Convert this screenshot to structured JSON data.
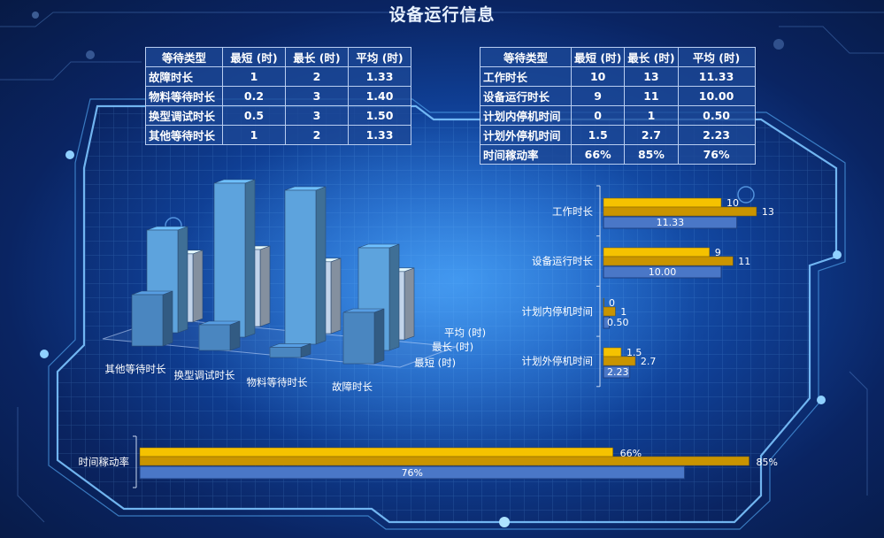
{
  "title": "设备运行信息",
  "table_left": {
    "headers": [
      "等待类型",
      "最短 (时)",
      "最长 (时)",
      "平均 (时)"
    ],
    "rows": [
      [
        "故障时长",
        "1",
        "2",
        "1.33"
      ],
      [
        "物料等待时长",
        "0.2",
        "3",
        "1.40"
      ],
      [
        "换型调试时长",
        "0.5",
        "3",
        "1.50"
      ],
      [
        "其他等待时长",
        "1",
        "2",
        "1.33"
      ]
    ]
  },
  "table_right": {
    "headers": [
      "等待类型",
      "最短 (时)",
      "最长 (时)",
      "平均 (时)"
    ],
    "rows": [
      [
        "工作时长",
        "10",
        "13",
        "11.33"
      ],
      [
        "设备运行时长",
        "9",
        "11",
        "10.00"
      ],
      [
        "计划内停机时间",
        "0",
        "1",
        "0.50"
      ],
      [
        "计划外停机时间",
        "1.5",
        "2.7",
        "2.23"
      ],
      [
        "时间稼动率",
        "66%",
        "85%",
        "76%"
      ]
    ]
  },
  "chart_data": [
    {
      "type": "bar",
      "chart_style": "3d",
      "categories": [
        "其他等待时长",
        "换型调试时长",
        "物料等待时长",
        "故障时长"
      ],
      "depth_labels": [
        "平均 (时)",
        "最长 (时)",
        "最短 (时)"
      ],
      "series": [
        {
          "name": "最短 (时)",
          "values": [
            1,
            0.5,
            0.2,
            1
          ]
        },
        {
          "name": "最长 (时)",
          "values": [
            2,
            3,
            3,
            2
          ]
        },
        {
          "name": "平均 (时)",
          "values": [
            1.33,
            1.5,
            1.4,
            1.33
          ]
        }
      ],
      "colors": {
        "front": "#4a86c0",
        "back": "#5da3dd",
        "avg": "#c2d4ea"
      }
    },
    {
      "type": "bar",
      "orientation": "horizontal",
      "categories": [
        "工作时长",
        "设备运行时长",
        "计划内停机时间",
        "计划外停机时间"
      ],
      "series": [
        {
          "name": "最短 (时)",
          "values": [
            10,
            9,
            0,
            1.5
          ],
          "labels": [
            "10",
            "9",
            "0",
            "1.5"
          ],
          "color": "#f5c200"
        },
        {
          "name": "最长 (时)",
          "values": [
            13,
            11,
            1,
            2.7
          ],
          "labels": [
            "13",
            "11",
            "1",
            "2.7"
          ],
          "color": "#c99400"
        },
        {
          "name": "平均 (时)",
          "values": [
            11.33,
            10.0,
            0.5,
            2.23
          ],
          "labels": [
            "11.33",
            "10.00",
            "0.50",
            "2.23"
          ],
          "color": "#4a77c7"
        }
      ]
    },
    {
      "type": "bar",
      "orientation": "horizontal",
      "categories": [
        "时间稼动率"
      ],
      "series": [
        {
          "name": "最短 (时)",
          "values": [
            66
          ],
          "labels": [
            "66%"
          ],
          "color": "#f5c200"
        },
        {
          "name": "最长 (时)",
          "values": [
            85
          ],
          "labels": [
            "85%"
          ],
          "color": "#c99400"
        },
        {
          "name": "平均 (时)",
          "values": [
            76
          ],
          "labels": [
            "76%"
          ],
          "color": "#4a77c7"
        }
      ]
    }
  ]
}
